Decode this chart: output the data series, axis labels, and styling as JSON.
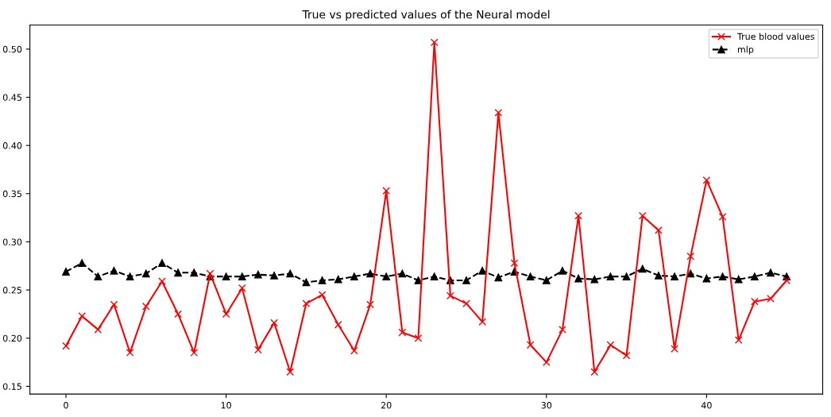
{
  "chart_data": {
    "type": "line",
    "title": "True vs predicted values of the Neural model",
    "x": [
      0,
      1,
      2,
      3,
      4,
      5,
      6,
      7,
      8,
      9,
      10,
      11,
      12,
      13,
      14,
      15,
      16,
      17,
      18,
      19,
      20,
      21,
      22,
      23,
      24,
      25,
      26,
      27,
      28,
      29,
      30,
      31,
      32,
      33,
      34,
      35,
      36,
      37,
      38,
      39,
      40,
      41,
      42,
      43,
      44,
      45
    ],
    "series": [
      {
        "name": "True blood values",
        "color": "#ff0000",
        "marker": "cross",
        "line_style": "solid",
        "values": [
          0.192,
          0.223,
          0.209,
          0.235,
          0.185,
          0.233,
          0.259,
          0.225,
          0.185,
          0.267,
          0.225,
          0.252,
          0.188,
          0.216,
          0.165,
          0.236,
          0.245,
          0.214,
          0.187,
          0.235,
          0.353,
          0.206,
          0.2,
          0.507,
          0.244,
          0.236,
          0.217,
          0.434,
          0.278,
          0.193,
          0.175,
          0.209,
          0.327,
          0.165,
          0.193,
          0.182,
          0.327,
          0.312,
          0.189,
          0.285,
          0.364,
          0.326,
          0.198,
          0.238,
          0.241,
          0.26
        ]
      },
      {
        "name": "mlp",
        "color": "#000000",
        "marker": "triangle",
        "line_style": "dashed",
        "values": [
          0.269,
          0.278,
          0.264,
          0.27,
          0.264,
          0.267,
          0.278,
          0.268,
          0.268,
          0.264,
          0.264,
          0.264,
          0.266,
          0.265,
          0.267,
          0.258,
          0.26,
          0.261,
          0.264,
          0.267,
          0.264,
          0.267,
          0.26,
          0.264,
          0.26,
          0.26,
          0.27,
          0.263,
          0.269,
          0.264,
          0.26,
          0.27,
          0.262,
          0.261,
          0.264,
          0.264,
          0.272,
          0.265,
          0.264,
          0.267,
          0.262,
          0.264,
          0.261,
          0.264,
          0.268,
          0.264
        ]
      }
    ],
    "xlim": [
      -2.25,
      47.25
    ],
    "ylim": [
      0.142,
      0.525
    ],
    "xticks": [
      0,
      10,
      20,
      30,
      40
    ],
    "yticks": [
      {
        "value": 0.15,
        "label": "0.15"
      },
      {
        "value": 0.2,
        "label": "0.20"
      },
      {
        "value": 0.25,
        "label": "0.25"
      },
      {
        "value": 0.3,
        "label": "0.30"
      },
      {
        "value": 0.35,
        "label": "0.35"
      },
      {
        "value": 0.4,
        "label": "0.40"
      },
      {
        "value": 0.45,
        "label": "0.45"
      },
      {
        "value": 0.5,
        "label": "0.50"
      }
    ],
    "grid": false,
    "legend": "top right"
  }
}
